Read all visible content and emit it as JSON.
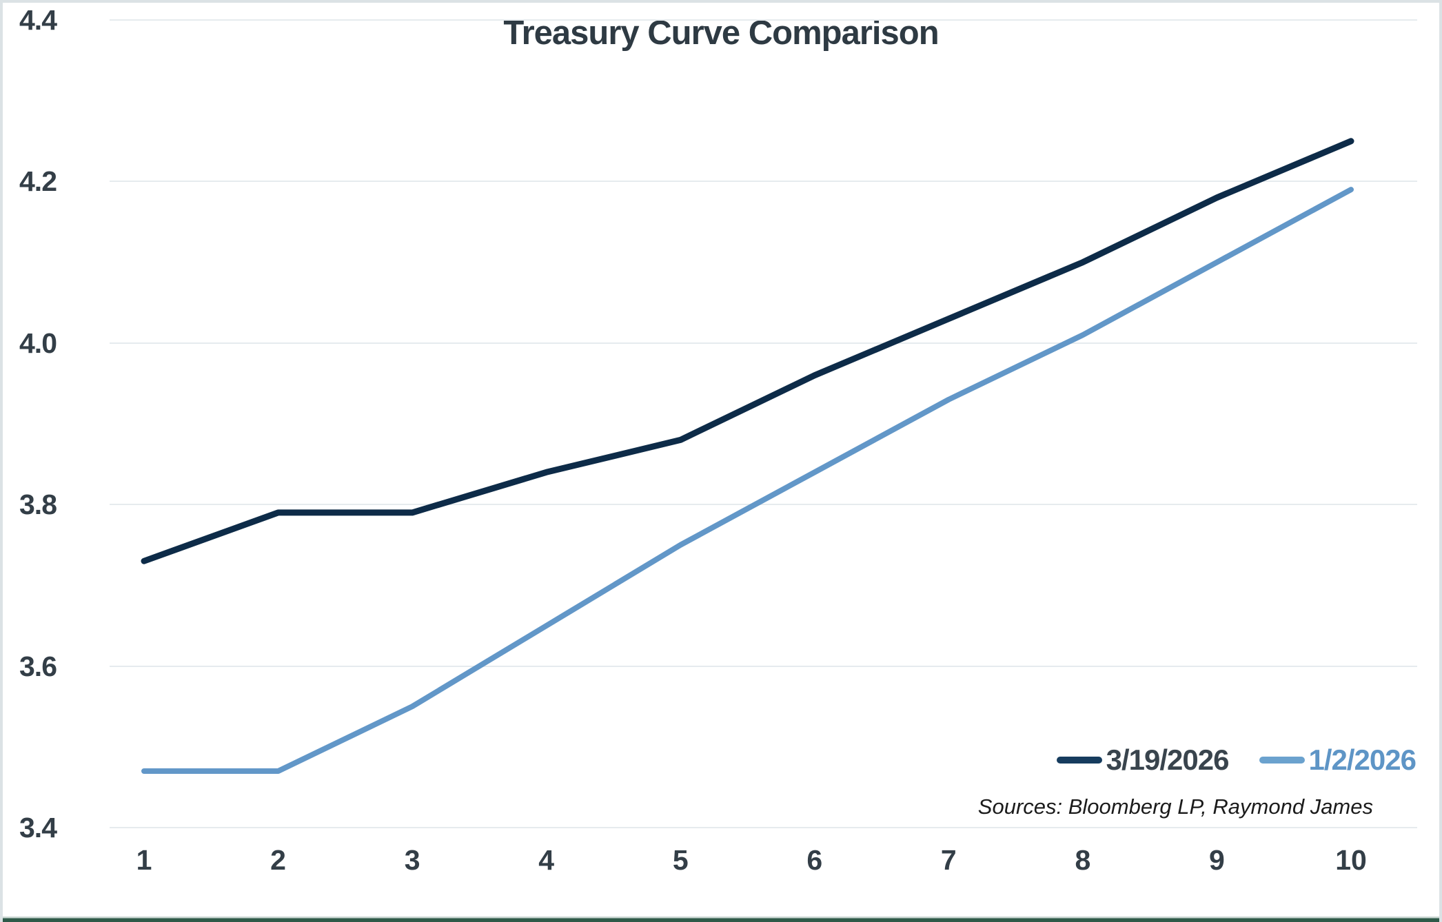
{
  "title": "Treasury Curve Comparison",
  "source_note": "Sources: Bloomberg LP, Raymond James",
  "legend": [
    {
      "label": "3/19/2026",
      "swatch_color": "#163c5e",
      "text_color": "#39444d"
    },
    {
      "label": "1/2/2026",
      "swatch_color": "#6ba2ce",
      "text_color": "#5e95c6"
    }
  ],
  "colors": {
    "series_dark_navy": "#0d2b48",
    "series_light_blue": "#6297c8",
    "gridline": "#e6ebee",
    "tick_label": "#333e47",
    "title": "#2e3a43",
    "outer_border": "#dbe2e5",
    "bottom_accent_bar": "#2e5948"
  },
  "chart_data": {
    "type": "line",
    "title": "Treasury Curve Comparison",
    "x": [
      1,
      2,
      3,
      4,
      5,
      6,
      7,
      8,
      9,
      10
    ],
    "xticks": [
      "1",
      "2",
      "3",
      "4",
      "5",
      "6",
      "7",
      "8",
      "9",
      "10"
    ],
    "yticks": [
      "4.4",
      "4.2",
      "4.0",
      "3.8",
      "3.6",
      "3.4"
    ],
    "ylim": [
      3.4,
      4.4
    ],
    "ytick_step": 0.2,
    "grid": "horizontal",
    "legend_position": "bottom-right",
    "xlabel": "",
    "ylabel": "",
    "series": [
      {
        "name": "3/19/2026",
        "color": "#0d2b48",
        "stroke_width": 9,
        "values": [
          3.73,
          3.79,
          3.79,
          3.84,
          3.88,
          3.96,
          4.03,
          4.1,
          4.18,
          4.25
        ]
      },
      {
        "name": "1/2/2026",
        "color": "#6297c8",
        "stroke_width": 8,
        "values": [
          3.47,
          3.47,
          3.55,
          3.65,
          3.75,
          3.84,
          3.93,
          4.01,
          4.1,
          4.19
        ]
      }
    ]
  }
}
